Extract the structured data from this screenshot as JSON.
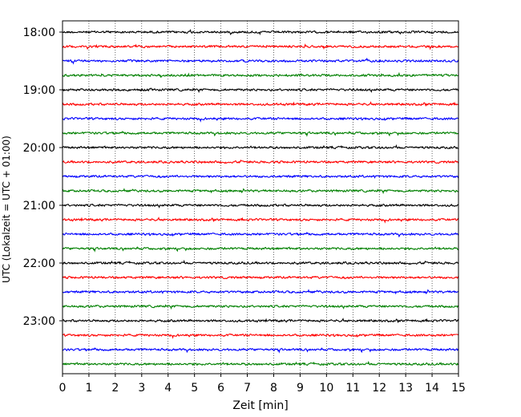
{
  "chart_data": {
    "type": "line",
    "title": "",
    "xlabel": "Zeit  [min]",
    "ylabel": "UTC (Lokalzeit = UTC + 01:00)",
    "xlim": [
      0,
      15
    ],
    "x_ticks": [
      "0",
      "1",
      "2",
      "3",
      "4",
      "5",
      "6",
      "7",
      "8",
      "9",
      "10",
      "11",
      "12",
      "13",
      "14",
      "15"
    ],
    "y_ticks": [
      "18:00",
      "19:00",
      "20:00",
      "21:00",
      "22:00",
      "23:00"
    ],
    "x_grid": "dotted vertical lines at each minute",
    "trace_interval_min": 15,
    "trace_colors": [
      "#000000",
      "#ff0000",
      "#0000ff",
      "#008000"
    ],
    "traces": [
      {
        "start": "18:00",
        "color": "#000000"
      },
      {
        "start": "18:15",
        "color": "#ff0000"
      },
      {
        "start": "18:30",
        "color": "#0000ff"
      },
      {
        "start": "18:45",
        "color": "#008000"
      },
      {
        "start": "19:00",
        "color": "#000000"
      },
      {
        "start": "19:15",
        "color": "#ff0000"
      },
      {
        "start": "19:30",
        "color": "#0000ff"
      },
      {
        "start": "19:45",
        "color": "#008000"
      },
      {
        "start": "20:00",
        "color": "#000000"
      },
      {
        "start": "20:15",
        "color": "#ff0000"
      },
      {
        "start": "20:30",
        "color": "#0000ff"
      },
      {
        "start": "20:45",
        "color": "#008000"
      },
      {
        "start": "21:00",
        "color": "#000000"
      },
      {
        "start": "21:15",
        "color": "#ff0000"
      },
      {
        "start": "21:30",
        "color": "#0000ff"
      },
      {
        "start": "21:45",
        "color": "#008000"
      },
      {
        "start": "22:00",
        "color": "#000000"
      },
      {
        "start": "22:15",
        "color": "#ff0000"
      },
      {
        "start": "22:30",
        "color": "#0000ff"
      },
      {
        "start": "22:45",
        "color": "#008000"
      },
      {
        "start": "23:00",
        "color": "#000000"
      },
      {
        "start": "23:15",
        "color": "#ff0000"
      },
      {
        "start": "23:30",
        "color": "#0000ff"
      },
      {
        "start": "23:45",
        "color": "#008000"
      }
    ]
  }
}
